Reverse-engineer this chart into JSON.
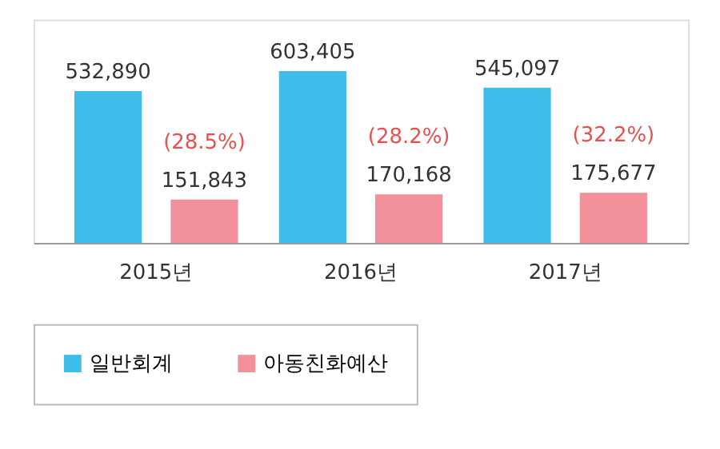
{
  "chart_data": {
    "type": "bar",
    "categories": [
      "2015년",
      "2016년",
      "2017년"
    ],
    "series": [
      {
        "name": "일반회계",
        "color": "#29b5e8",
        "values": [
          532890,
          603405,
          545097
        ],
        "value_labels": [
          "532,890",
          "603,405",
          "545,097"
        ]
      },
      {
        "name": "아동친화예산",
        "color": "#f2858f",
        "values": [
          151843,
          170168,
          175677
        ],
        "value_labels": [
          "151,843",
          "170,168",
          "175,677"
        ]
      }
    ],
    "legend": "bottom",
    "grid": false,
    "annotations": [
      "(28.5%)",
      "(28.2%)",
      "(32.2%)"
    ]
  }
}
